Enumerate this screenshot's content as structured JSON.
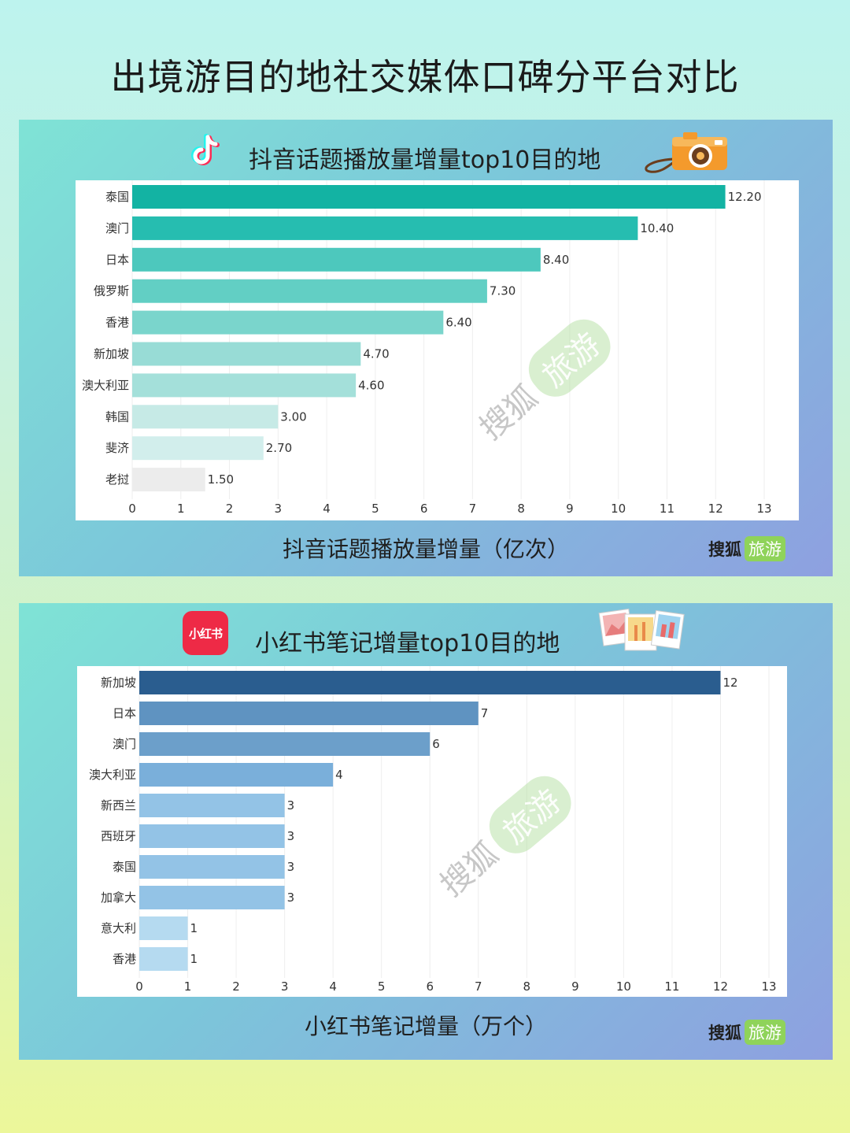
{
  "title": "出境游目的地社交媒体口碑分平台对比",
  "brand": {
    "name": "搜狐",
    "tag": "旅游"
  },
  "watermark": {
    "name": "搜狐",
    "tag": "旅游"
  },
  "charts": [
    {
      "platform_icon": "douyin-icon",
      "platform_label": "",
      "decor_icon": "camera-icon",
      "chart_data": {
        "type": "bar",
        "orientation": "horizontal",
        "title": "抖音话题播放量增量top10目的地",
        "xlabel": "抖音话题播放量增量（亿次）",
        "categories": [
          "泰国",
          "澳门",
          "日本",
          "俄罗斯",
          "香港",
          "新加坡",
          "澳大利亚",
          "韩国",
          "斐济",
          "老挝"
        ],
        "values": [
          12.2,
          10.4,
          8.4,
          7.3,
          6.4,
          4.7,
          4.6,
          3.0,
          2.7,
          1.5
        ],
        "value_labels": [
          "12.20",
          "10.40",
          "8.40",
          "7.30",
          "6.40",
          "4.70",
          "4.60",
          "3.00",
          "2.70",
          "1.50"
        ],
        "xlim": [
          0,
          13
        ],
        "xticks": [
          "0",
          "1",
          "2",
          "3",
          "4",
          "5",
          "6",
          "7",
          "8",
          "9",
          "10",
          "11",
          "12",
          "13"
        ],
        "colors": [
          "#13b3a3",
          "#26bdb0",
          "#4dc8bd",
          "#62cfc4",
          "#7ad5cc",
          "#98dcd6",
          "#a4e0da",
          "#c6eae6",
          "#d2eeec",
          "#ececec"
        ]
      }
    },
    {
      "platform_icon": "xiaohongshu-icon",
      "platform_label": "小红书",
      "decor_icon": "photos-icon",
      "chart_data": {
        "type": "bar",
        "orientation": "horizontal",
        "title": "小红书笔记增量top10目的地",
        "xlabel": "小红书笔记增量（万个）",
        "categories": [
          "新加坡",
          "日本",
          "澳门",
          "澳大利亚",
          "新西兰",
          "西班牙",
          "泰国",
          "加拿大",
          "意大利",
          "香港"
        ],
        "values": [
          12,
          7,
          6,
          4,
          3,
          3,
          3,
          3,
          1,
          1
        ],
        "value_labels": [
          "12",
          "7",
          "6",
          "4",
          "3",
          "3",
          "3",
          "3",
          "1",
          "1"
        ],
        "xlim": [
          0,
          13
        ],
        "xticks": [
          "0",
          "1",
          "2",
          "3",
          "4",
          "5",
          "6",
          "7",
          "8",
          "9",
          "10",
          "11",
          "12",
          "13"
        ],
        "colors": [
          "#2a5d8f",
          "#5f93c1",
          "#6c9fca",
          "#7aafda",
          "#93c3e6",
          "#93c3e6",
          "#93c3e6",
          "#93c3e6",
          "#b5daf0",
          "#b5daf0"
        ]
      }
    }
  ]
}
